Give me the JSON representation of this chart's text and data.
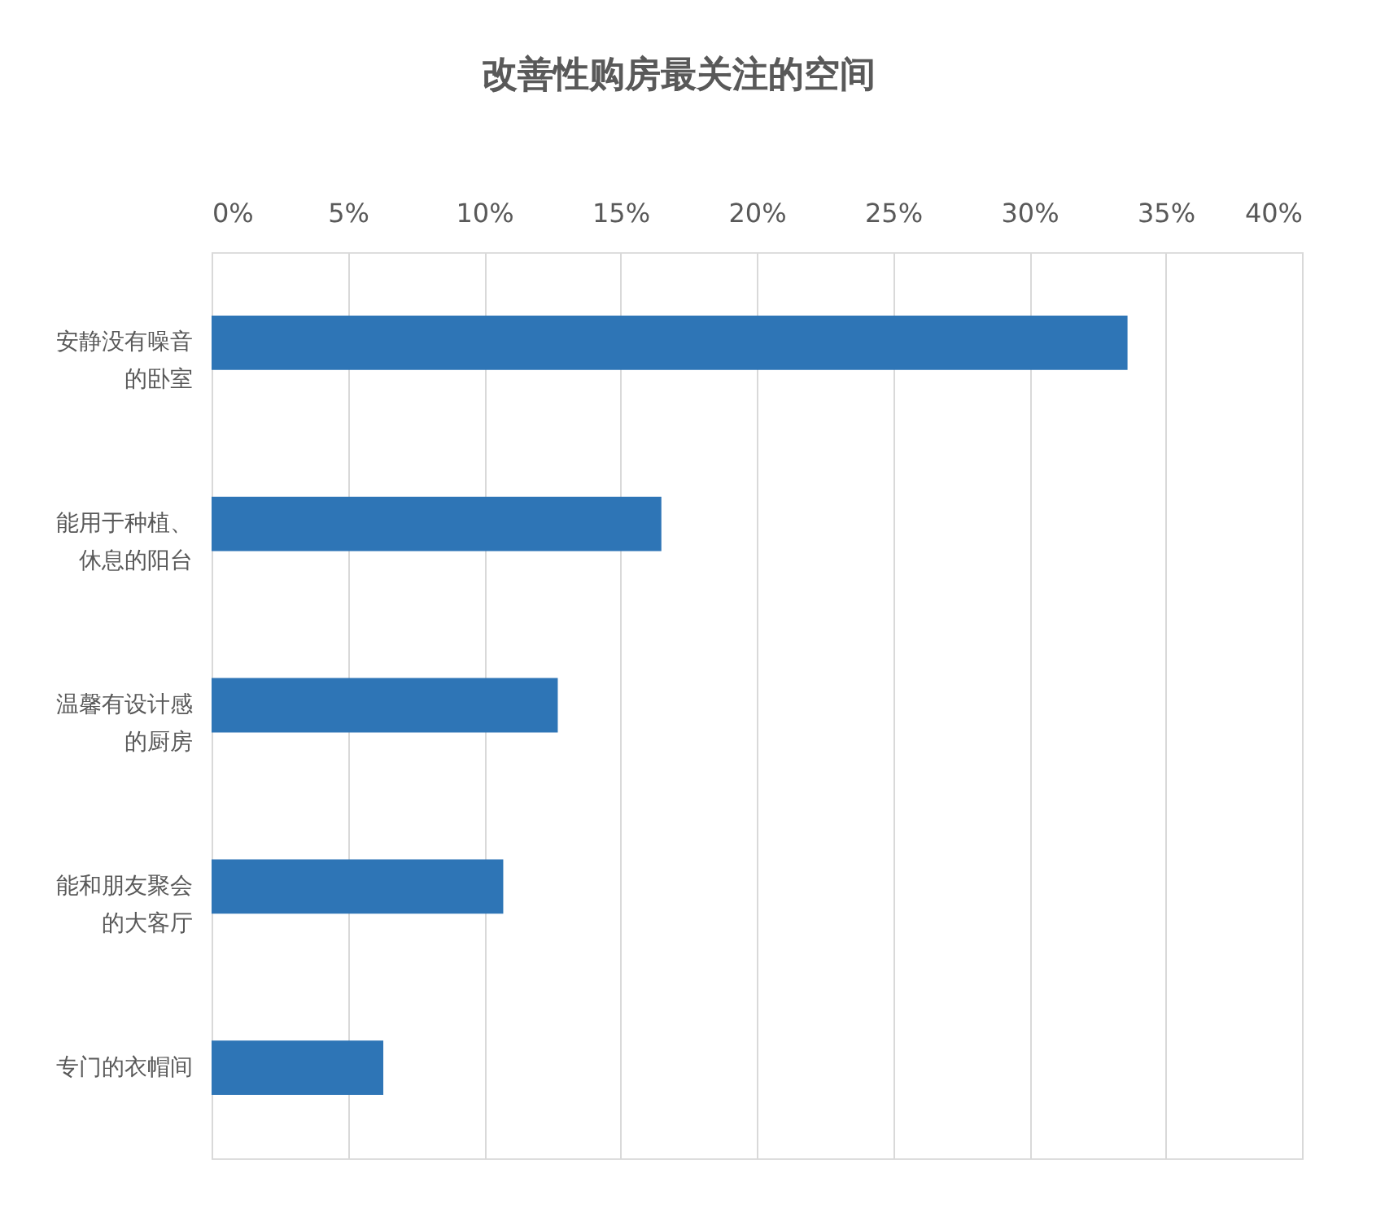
{
  "chart_data": {
    "type": "bar",
    "orientation": "horizontal",
    "title": "改善性购房最关注的空间",
    "categories": [
      "安静没有噪音的卧室",
      "能用于种植、休息的阳台",
      "温馨有设计感的厨房",
      "能和朋友聚会的大客厅",
      "专门的衣帽间"
    ],
    "values": [
      33.6,
      16.5,
      12.7,
      10.7,
      6.3
    ],
    "color": "#2e75b6",
    "xlim": [
      0,
      40
    ],
    "xticks": [
      {
        "value": 0,
        "label": "0%"
      },
      {
        "value": 5,
        "label": "5%"
      },
      {
        "value": 10,
        "label": "10%"
      },
      {
        "value": 15,
        "label": "15%"
      },
      {
        "value": 20,
        "label": "20%"
      },
      {
        "value": 25,
        "label": "25%"
      },
      {
        "value": 30,
        "label": "30%"
      },
      {
        "value": 35,
        "label": "35%"
      },
      {
        "value": 40,
        "label": "40%"
      }
    ],
    "grid": "x"
  }
}
